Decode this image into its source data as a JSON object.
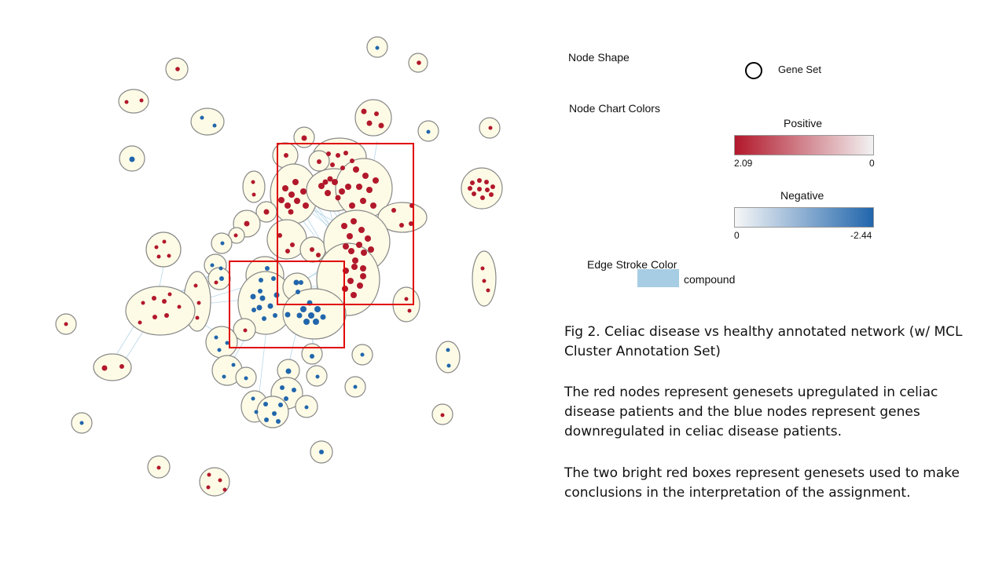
{
  "legend": {
    "node_shape_title": "Node Shape",
    "gene_set_label": "Gene Set",
    "node_chart_colors_title": "Node Chart Colors",
    "positive_title": "Positive",
    "positive_min_label": "2.09",
    "positive_max_label": "0",
    "negative_title": "Negative",
    "negative_min_label": "0",
    "negative_max_label": "-2.44",
    "edge_stroke_title": "Edge Stroke Color",
    "edge_compound_label": "compound"
  },
  "colors": {
    "upregulated": "#b2182b",
    "downregulated": "#2166ac",
    "cluster_fill": "#fdfbe6",
    "cluster_stroke": "#888888",
    "edge": "#a6cde3",
    "highlight_box": "#e00000"
  },
  "caption": {
    "title": "Fig 2. Celiac disease vs healthy annotated network (w/ MCL Cluster Annotation Set)",
    "paragraph1": "The red nodes represent genesets upregulated in celiac disease patients and the blue nodes represent genes downregulated in celiac disease patients.",
    "paragraph2": "The two bright red boxes represent genesets used to make conclusions in the interpretation of the assignment."
  }
}
